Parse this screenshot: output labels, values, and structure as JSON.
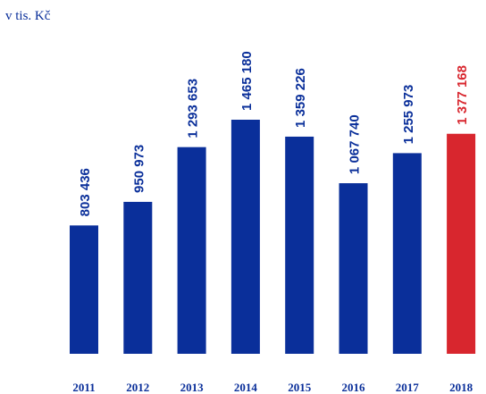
{
  "chart_data": {
    "type": "bar",
    "title": "v tis. Kč",
    "categories": [
      "2011",
      "2012",
      "2013",
      "2014",
      "2015",
      "2016",
      "2017",
      "2018"
    ],
    "values": [
      803436,
      950973,
      1293653,
      1465180,
      1359226,
      1067740,
      1255973,
      1377168
    ],
    "value_labels": [
      "803 436",
      "950 973",
      "1 293 653",
      "1 465 180",
      "1 359 226",
      "1 067 740",
      "1 255 973",
      "1 377 168"
    ],
    "colors": [
      "#0a2f9a",
      "#0a2f9a",
      "#0a2f9a",
      "#0a2f9a",
      "#0a2f9a",
      "#0a2f9a",
      "#0a2f9a",
      "#d8262e"
    ]
  }
}
